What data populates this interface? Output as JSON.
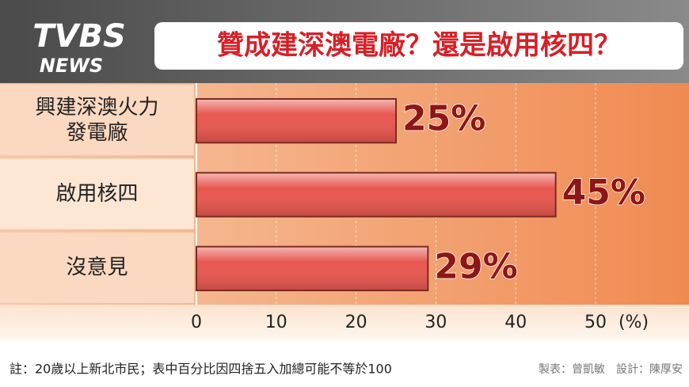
{
  "logo": {
    "top": "TVBS",
    "bottom": "NEWS"
  },
  "chart_data": {
    "type": "hbar",
    "title": "贊成建深澳電廠？還是啟用核四？",
    "categories": [
      "興建深澳火力發電廠",
      "啟用核四",
      "沒意見"
    ],
    "values": [
      25,
      45,
      29
    ],
    "value_labels": [
      "25%",
      "45%",
      "29%"
    ],
    "color": "#e8574f",
    "label_color": "#8e1616",
    "xlim": [
      0,
      61.7
    ],
    "xticks": [
      0,
      10,
      20,
      30,
      40,
      50
    ],
    "x_axis_label": "(%)",
    "grid": true,
    "note": "註：20歲以上新北市民；表中百分比因四捨五入加總可能不等於100",
    "credits": "製表：曾凱敏　設計：陳厚安"
  }
}
